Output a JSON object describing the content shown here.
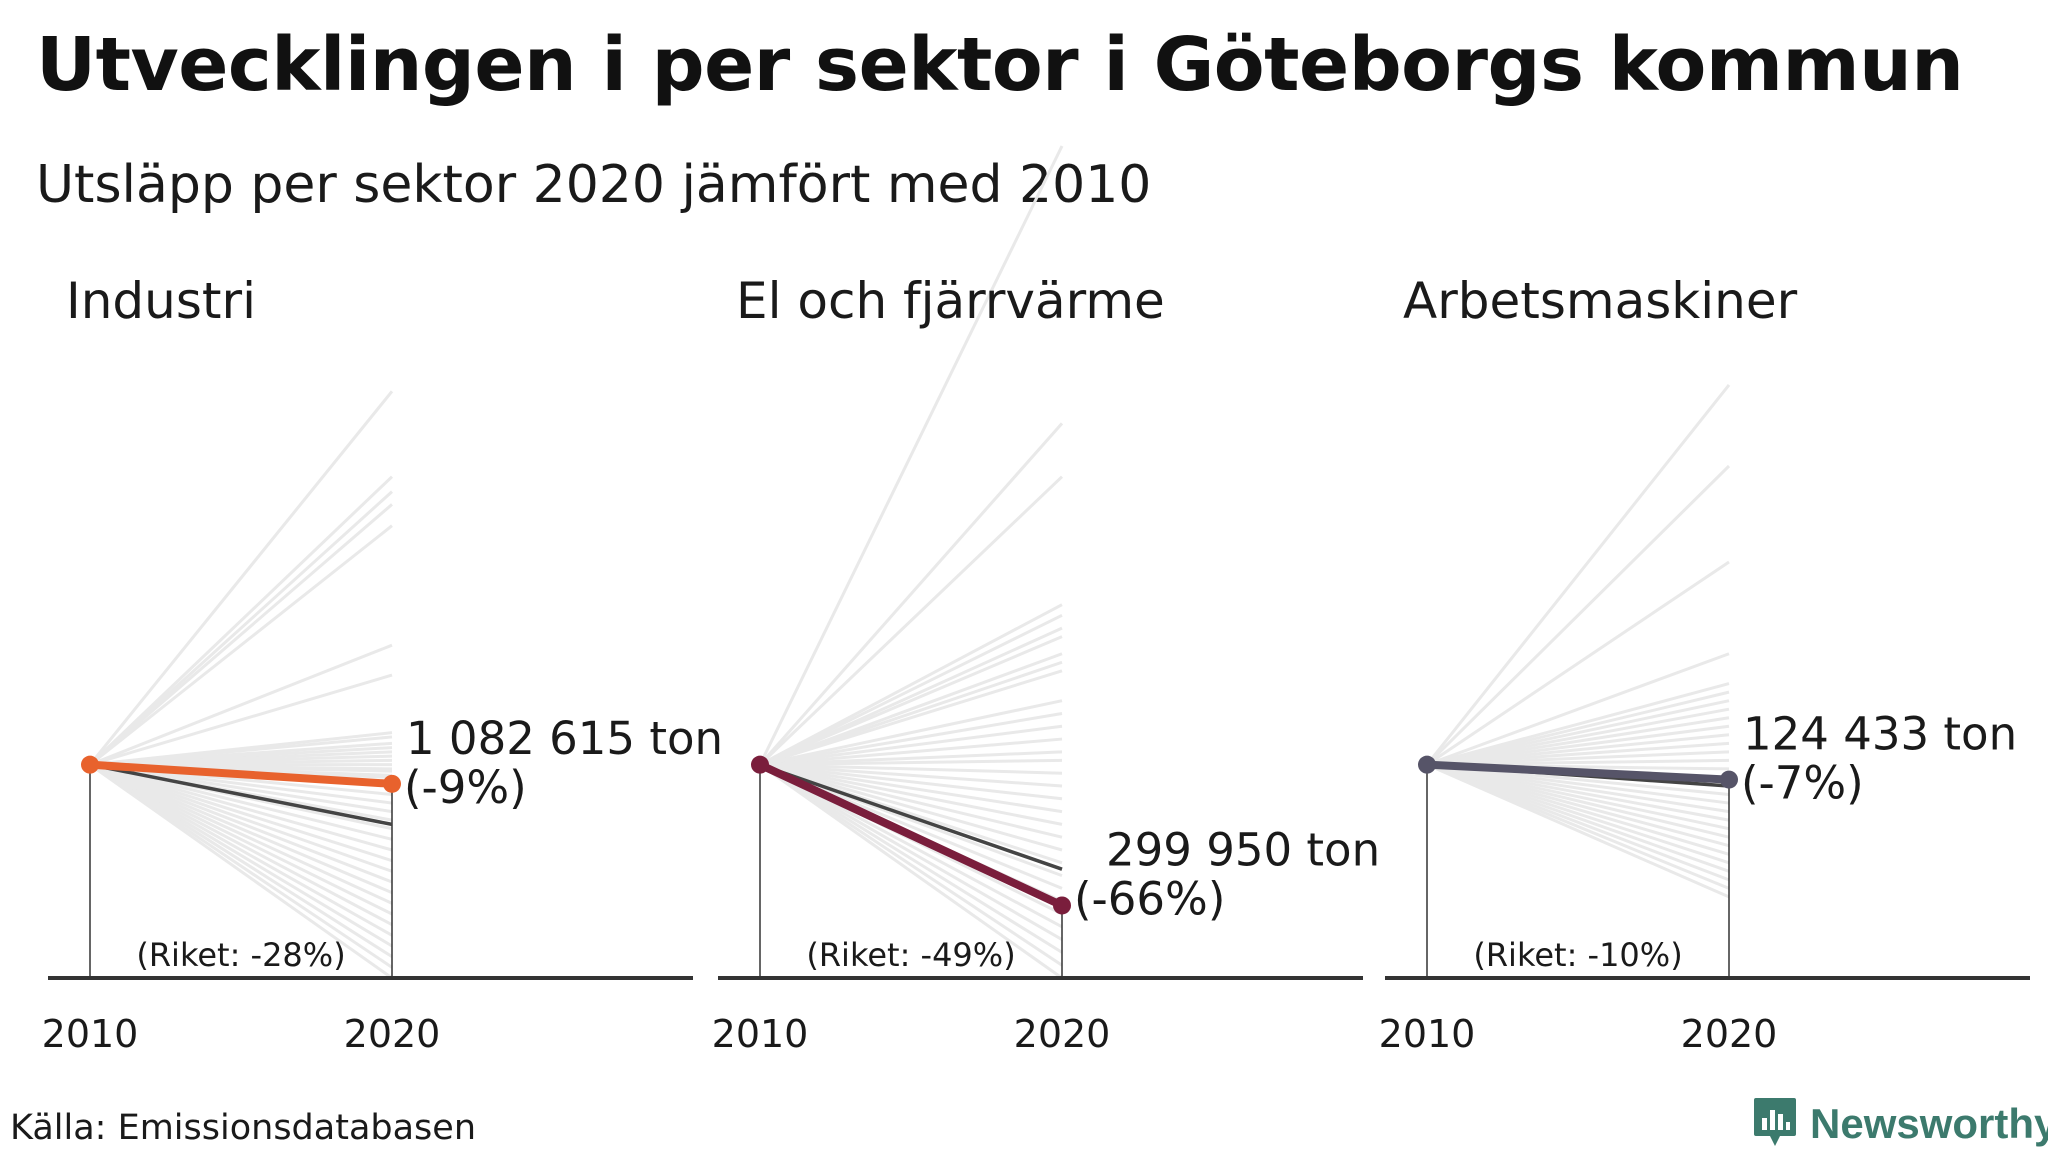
{
  "title": "Utvecklingen i per sektor i Göteborgs kommun",
  "subtitle": "Utsläpp per sektor 2020 jämfört med 2010",
  "source": "Källa: Emissionsdatabasen",
  "brand": {
    "name": "Newsworthy",
    "icon": "newsworthy-logo-icon",
    "color": "#3c7a6d"
  },
  "chart_data": [
    {
      "type": "line",
      "title": "Industri",
      "x": [
        "2010",
        "2020"
      ],
      "ylim": [
        -100,
        185
      ],
      "highlight": {
        "name": "Göteborg",
        "change_pct": -9,
        "color": "#e8622d",
        "label_value": "1 082 615 ton",
        "label_pct": "(-9%)"
      },
      "national": {
        "change_pct": -28,
        "label": "(Riket: -28%)",
        "color": "#444444"
      },
      "background_change_pct": [
        175,
        135,
        128,
        122,
        112,
        56,
        42,
        15,
        13,
        10,
        8,
        6,
        4,
        2,
        0,
        -2,
        -3,
        -5,
        -6,
        -8,
        -10,
        -14,
        -18,
        -22,
        -26,
        -30,
        -35,
        -40,
        -45,
        -50,
        -55,
        -60,
        -65,
        -70,
        -75,
        -80,
        -85,
        -90,
        -95,
        -100
      ]
    },
    {
      "type": "line",
      "title": "El och fjärrvärme",
      "x": [
        "2010",
        "2020"
      ],
      "ylim": [
        -100,
        185
      ],
      "highlight": {
        "name": "Göteborg",
        "change_pct": -66,
        "color": "#7a1e3c",
        "label_value": "299 950 ton",
        "label_pct": "(-66%)"
      },
      "national": {
        "change_pct": -49,
        "label": "(Riket: -49%)",
        "color": "#444444"
      },
      "background_change_pct": [
        290,
        160,
        135,
        75,
        70,
        64,
        60,
        52,
        48,
        44,
        30,
        24,
        18,
        12,
        6,
        2,
        -4,
        -10,
        -16,
        -22,
        -28,
        -34,
        -40,
        -46,
        -52,
        -58,
        -64,
        -70,
        -76,
        -82,
        -88,
        -94,
        -100
      ]
    },
    {
      "type": "line",
      "title": "Arbetsmaskiner",
      "x": [
        "2010",
        "2020"
      ],
      "ylim": [
        -100,
        185
      ],
      "highlight": {
        "name": "Göteborg",
        "change_pct": -7,
        "color": "#565468",
        "label_value": "124 433 ton",
        "label_pct": "(-7%)"
      },
      "national": {
        "change_pct": -10,
        "label": "(Riket: -10%)",
        "color": "#444444"
      },
      "background_change_pct": [
        178,
        140,
        95,
        52,
        38,
        34,
        30,
        26,
        22,
        18,
        14,
        10,
        6,
        2,
        -2,
        -6,
        -10,
        -14,
        -18,
        -22,
        -26,
        -30,
        -34,
        -38,
        -42,
        -46,
        -50,
        -54,
        -58,
        -62
      ]
    }
  ]
}
